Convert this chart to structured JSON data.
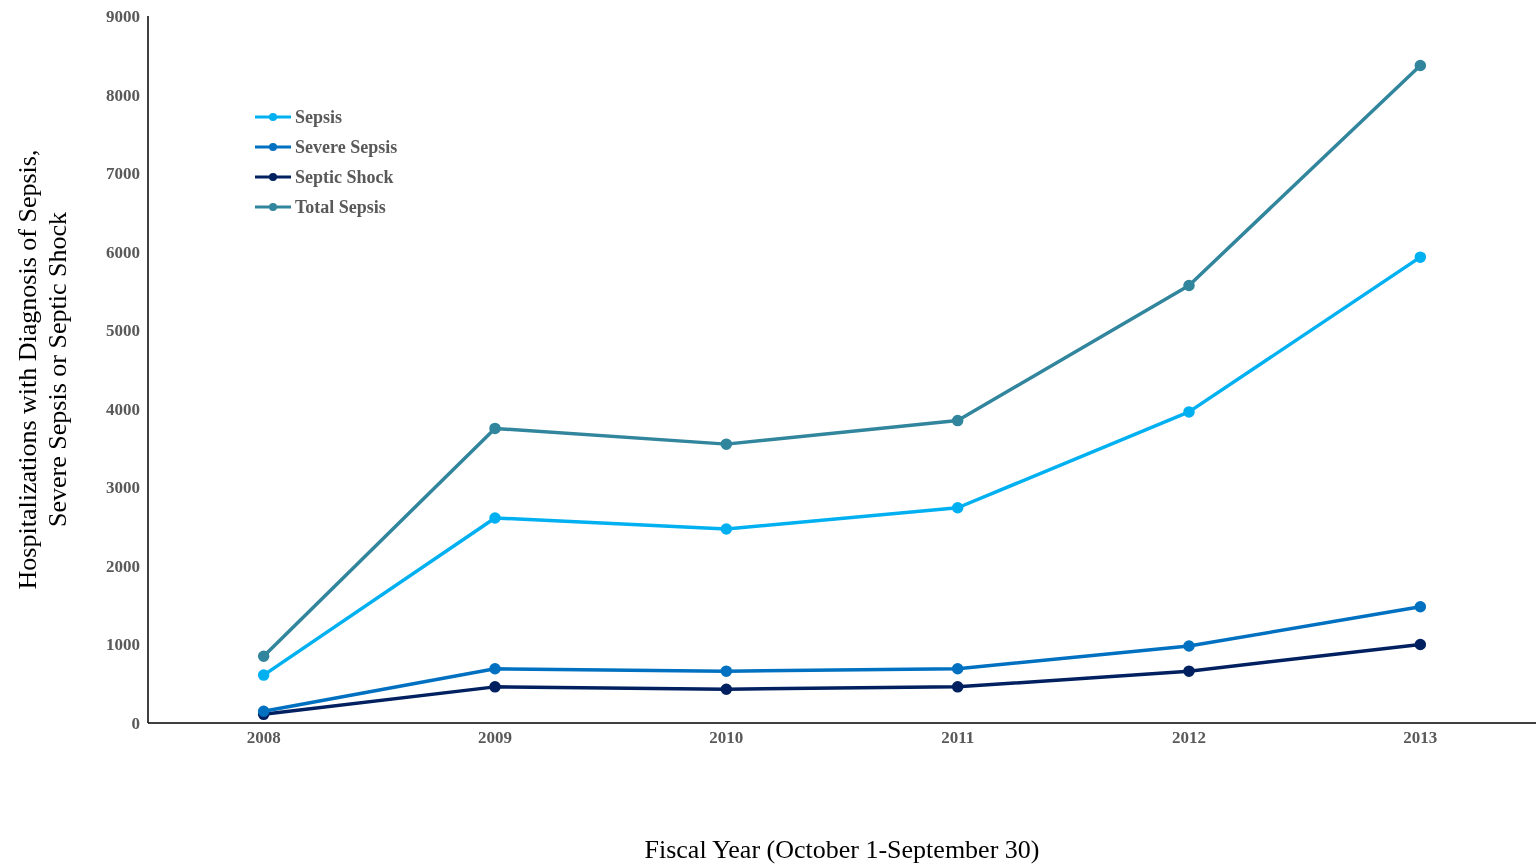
{
  "chart_data": {
    "type": "line",
    "xlabel": "Fiscal Year (October 1-September 30)",
    "ylabel": "Hospitalizations with Diagnosis of Sepsis, Severe Sepsis or Septic Shock",
    "categories": [
      "2008",
      "2009",
      "2010",
      "2011",
      "2012",
      "2013"
    ],
    "ylim": [
      0,
      9000
    ],
    "yticks": [
      0,
      1000,
      2000,
      3000,
      4000,
      5000,
      6000,
      7000,
      8000,
      9000
    ],
    "grid": false,
    "legend": "top left",
    "marker": "circle",
    "line_style": "solid",
    "series": [
      {
        "name": "Sepsis",
        "color": "#00b0f0",
        "values": [
          610,
          2610,
          2470,
          2740,
          3960,
          5930
        ]
      },
      {
        "name": "Severe Sepsis",
        "color": "#0070c0",
        "values": [
          150,
          690,
          660,
          690,
          980,
          1480
        ]
      },
      {
        "name": "Septic Shock",
        "color": "#002060",
        "values": [
          110,
          460,
          430,
          460,
          660,
          1000
        ]
      },
      {
        "name": "Total Sepsis",
        "color": "#31859c",
        "values": [
          850,
          3750,
          3550,
          3850,
          5570,
          8370
        ]
      }
    ]
  }
}
